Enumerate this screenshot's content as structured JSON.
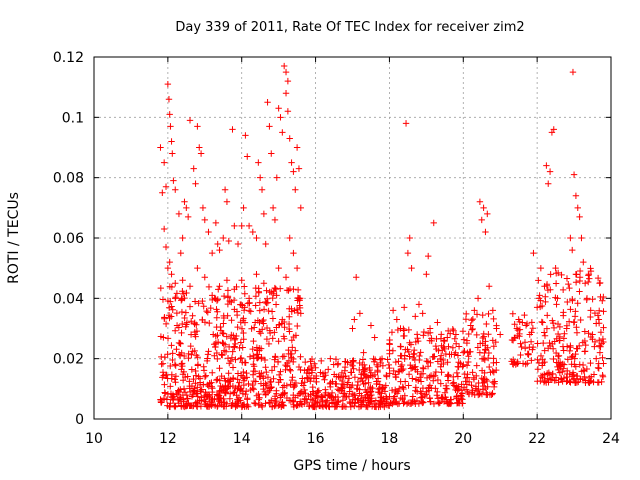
{
  "chart_data": {
    "type": "scatter",
    "title": "Day 339 of 2011, Rate Of TEC Index for receiver zim2",
    "xlabel": "GPS time / hours",
    "ylabel": "ROTI / TECUs",
    "xlim": [
      10,
      24
    ],
    "ylim": [
      0,
      0.12
    ],
    "xticks": [
      10,
      12,
      14,
      16,
      18,
      20,
      22,
      24
    ],
    "xtick_labels": [
      "10",
      "12",
      "14",
      "16",
      "18",
      "20",
      "22",
      "24"
    ],
    "yticks": [
      0,
      0.02,
      0.04,
      0.06,
      0.08,
      0.1,
      0.12
    ],
    "ytick_labels": [
      "0",
      "0.02",
      "0.04",
      "0.06",
      "0.08",
      "0.1",
      "0.12"
    ],
    "grid": true,
    "marker": "plus",
    "color": "#ff0000",
    "series": [
      {
        "name": "ROTI",
        "points": [
          [
            11.8,
            0.09
          ],
          [
            11.85,
            0.075
          ],
          [
            11.9,
            0.085
          ],
          [
            11.95,
            0.077
          ],
          [
            12.0,
            0.111
          ],
          [
            12.03,
            0.106
          ],
          [
            12.05,
            0.101
          ],
          [
            12.07,
            0.097
          ],
          [
            12.1,
            0.092
          ],
          [
            12.12,
            0.088
          ],
          [
            12.15,
            0.079
          ],
          [
            12.2,
            0.076
          ],
          [
            11.9,
            0.063
          ],
          [
            11.95,
            0.057
          ],
          [
            12.05,
            0.052
          ],
          [
            12.1,
            0.048
          ],
          [
            12.2,
            0.045
          ],
          [
            12.3,
            0.068
          ],
          [
            12.35,
            0.055
          ],
          [
            12.4,
            0.06
          ],
          [
            12.45,
            0.072
          ],
          [
            12.5,
            0.07
          ],
          [
            12.55,
            0.067
          ],
          [
            12.6,
            0.099
          ],
          [
            12.7,
            0.083
          ],
          [
            12.75,
            0.078
          ],
          [
            12.8,
            0.097
          ],
          [
            12.85,
            0.09
          ],
          [
            12.9,
            0.088
          ],
          [
            12.95,
            0.07
          ],
          [
            13.0,
            0.066
          ],
          [
            13.1,
            0.062
          ],
          [
            13.2,
            0.055
          ],
          [
            13.3,
            0.065
          ],
          [
            13.35,
            0.058
          ],
          [
            13.4,
            0.056
          ],
          [
            13.5,
            0.06
          ],
          [
            13.55,
            0.076
          ],
          [
            13.6,
            0.072
          ],
          [
            13.65,
            0.059
          ],
          [
            13.75,
            0.096
          ],
          [
            13.8,
            0.064
          ],
          [
            13.9,
            0.058
          ],
          [
            14.0,
            0.064
          ],
          [
            14.05,
            0.07
          ],
          [
            14.1,
            0.094
          ],
          [
            14.15,
            0.087
          ],
          [
            14.2,
            0.064
          ],
          [
            14.3,
            0.062
          ],
          [
            14.4,
            0.06
          ],
          [
            14.45,
            0.085
          ],
          [
            14.5,
            0.08
          ],
          [
            14.55,
            0.076
          ],
          [
            14.6,
            0.068
          ],
          [
            14.65,
            0.058
          ],
          [
            14.7,
            0.105
          ],
          [
            14.75,
            0.097
          ],
          [
            14.8,
            0.088
          ],
          [
            14.85,
            0.07
          ],
          [
            14.9,
            0.066
          ],
          [
            14.95,
            0.08
          ],
          [
            15.0,
            0.103
          ],
          [
            15.05,
            0.1
          ],
          [
            15.1,
            0.095
          ],
          [
            15.15,
            0.117
          ],
          [
            15.2,
            0.115
          ],
          [
            15.25,
            0.112
          ],
          [
            15.3,
            0.093
          ],
          [
            15.35,
            0.085
          ],
          [
            15.4,
            0.082
          ],
          [
            15.45,
            0.076
          ],
          [
            15.5,
            0.09
          ],
          [
            15.55,
            0.083
          ],
          [
            15.6,
            0.07
          ],
          [
            15.2,
            0.108
          ],
          [
            15.25,
            0.102
          ],
          [
            15.3,
            0.06
          ],
          [
            15.4,
            0.055
          ],
          [
            15.5,
            0.05
          ],
          [
            15.55,
            0.04
          ],
          [
            12.0,
            0.05
          ],
          [
            12.2,
            0.04
          ],
          [
            12.4,
            0.046
          ],
          [
            12.6,
            0.044
          ],
          [
            12.8,
            0.05
          ],
          [
            13.0,
            0.047
          ],
          [
            13.2,
            0.041
          ],
          [
            13.4,
            0.044
          ],
          [
            13.6,
            0.046
          ],
          [
            13.8,
            0.043
          ],
          [
            14.0,
            0.046
          ],
          [
            14.2,
            0.04
          ],
          [
            14.4,
            0.048
          ],
          [
            14.6,
            0.045
          ],
          [
            14.8,
            0.042
          ],
          [
            15.0,
            0.05
          ],
          [
            15.2,
            0.047
          ],
          [
            15.4,
            0.043
          ],
          [
            15.6,
            0.035
          ],
          [
            16.0,
            0.017
          ],
          [
            16.2,
            0.015
          ],
          [
            16.4,
            0.02
          ],
          [
            16.6,
            0.018
          ],
          [
            16.8,
            0.019
          ],
          [
            17.0,
            0.03
          ],
          [
            17.05,
            0.033
          ],
          [
            17.1,
            0.047
          ],
          [
            17.2,
            0.035
          ],
          [
            17.3,
            0.022
          ],
          [
            17.5,
            0.031
          ],
          [
            17.6,
            0.027
          ],
          [
            17.8,
            0.02
          ],
          [
            18.0,
            0.025
          ],
          [
            18.1,
            0.036
          ],
          [
            18.2,
            0.033
          ],
          [
            18.3,
            0.03
          ],
          [
            18.4,
            0.037
          ],
          [
            18.45,
            0.098
          ],
          [
            18.5,
            0.055
          ],
          [
            18.55,
            0.06
          ],
          [
            18.6,
            0.05
          ],
          [
            18.7,
            0.034
          ],
          [
            18.8,
            0.038
          ],
          [
            18.9,
            0.035
          ],
          [
            19.0,
            0.048
          ],
          [
            19.05,
            0.054
          ],
          [
            19.1,
            0.03
          ],
          [
            19.2,
            0.065
          ],
          [
            19.3,
            0.032
          ],
          [
            19.4,
            0.021
          ],
          [
            19.6,
            0.024
          ],
          [
            19.8,
            0.028
          ],
          [
            20.0,
            0.022
          ],
          [
            20.1,
            0.026
          ],
          [
            20.2,
            0.031
          ],
          [
            20.3,
            0.036
          ],
          [
            20.4,
            0.04
          ],
          [
            20.45,
            0.072
          ],
          [
            20.5,
            0.066
          ],
          [
            20.55,
            0.07
          ],
          [
            20.6,
            0.062
          ],
          [
            20.65,
            0.068
          ],
          [
            20.7,
            0.044
          ],
          [
            20.8,
            0.036
          ],
          [
            20.9,
            0.03
          ],
          [
            21.0,
            0.028
          ],
          [
            21.4,
            0.027
          ],
          [
            21.45,
            0.03
          ],
          [
            21.5,
            0.033
          ],
          [
            21.55,
            0.025
          ],
          [
            21.6,
            0.032
          ],
          [
            21.7,
            0.031
          ],
          [
            21.8,
            0.028
          ],
          [
            21.9,
            0.055
          ],
          [
            22.0,
            0.037
          ],
          [
            22.05,
            0.04
          ],
          [
            22.1,
            0.05
          ],
          [
            22.15,
            0.032
          ],
          [
            22.2,
            0.044
          ],
          [
            22.25,
            0.084
          ],
          [
            22.3,
            0.078
          ],
          [
            22.35,
            0.082
          ],
          [
            22.4,
            0.095
          ],
          [
            22.45,
            0.096
          ],
          [
            22.5,
            0.05
          ],
          [
            22.55,
            0.04
          ],
          [
            22.6,
            0.026
          ],
          [
            22.65,
            0.018
          ],
          [
            22.7,
            0.024
          ],
          [
            22.8,
            0.03
          ],
          [
            22.9,
            0.06
          ],
          [
            22.95,
            0.056
          ],
          [
            22.97,
            0.115
          ],
          [
            23.0,
            0.081
          ],
          [
            23.05,
            0.074
          ],
          [
            23.1,
            0.07
          ],
          [
            23.15,
            0.067
          ],
          [
            23.2,
            0.06
          ],
          [
            23.25,
            0.052
          ],
          [
            23.3,
            0.045
          ],
          [
            23.35,
            0.04
          ],
          [
            23.4,
            0.048
          ],
          [
            23.45,
            0.036
          ],
          [
            23.5,
            0.028
          ],
          [
            23.55,
            0.024
          ],
          [
            23.6,
            0.02
          ],
          [
            23.65,
            0.017
          ],
          [
            23.7,
            0.022
          ],
          [
            23.75,
            0.025
          ]
        ],
        "dense_bands": [
          {
            "x_start": 11.8,
            "x_end": 15.6,
            "y_min": 0.004,
            "y_max": 0.044,
            "count": 700
          },
          {
            "x_start": 15.6,
            "x_end": 18.0,
            "y_min": 0.004,
            "y_max": 0.02,
            "count": 320
          },
          {
            "x_start": 18.0,
            "x_end": 20.0,
            "y_min": 0.005,
            "y_max": 0.03,
            "count": 260
          },
          {
            "x_start": 20.0,
            "x_end": 20.9,
            "y_min": 0.008,
            "y_max": 0.035,
            "count": 110
          },
          {
            "x_start": 21.3,
            "x_end": 21.9,
            "y_min": 0.018,
            "y_max": 0.035,
            "count": 40
          },
          {
            "x_start": 22.0,
            "x_end": 23.8,
            "y_min": 0.012,
            "y_max": 0.05,
            "count": 230
          }
        ]
      }
    ]
  }
}
